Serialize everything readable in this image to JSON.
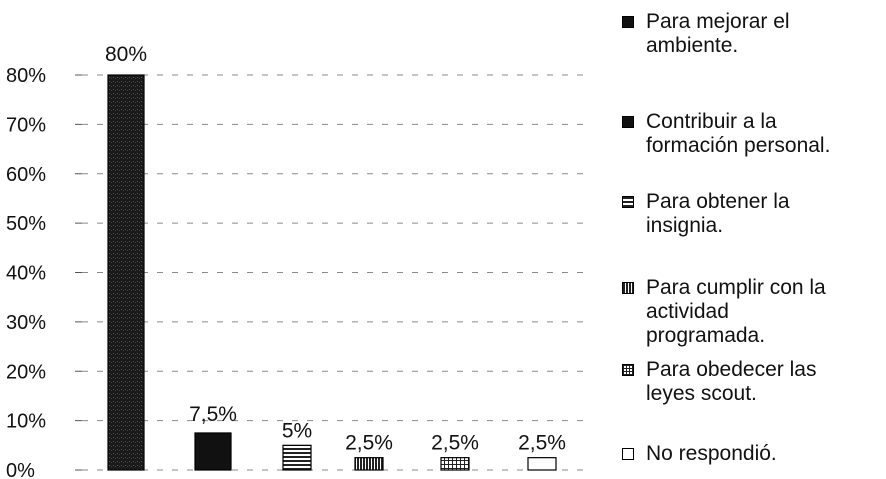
{
  "chart_data": {
    "type": "bar",
    "categories": [
      "Para mejorar el ambiente.",
      "Contribuir a la formación personal.",
      "Para obtener la insignia.",
      "Para cumplir con la actividad programada.",
      "Para obedecer las leyes scout.",
      "No respondió."
    ],
    "values": [
      80,
      7.5,
      5,
      2.5,
      2.5,
      2.5
    ],
    "data_labels": [
      "80%",
      "7,5%",
      "5%",
      "2,5%",
      "2,5%",
      "2,5%"
    ],
    "y_ticks": [
      "0%",
      "10%",
      "20%",
      "30%",
      "40%",
      "50%",
      "60%",
      "70%",
      "80%"
    ],
    "ylim": [
      0,
      80
    ],
    "grid": true,
    "legend_placement": "right",
    "colors": [
      "#1c1c1c",
      "#111111",
      "#5a5a5a",
      "#6e6e6e",
      "#7a7a7a",
      "#ffffff"
    ],
    "patterns": [
      "dark-stipple",
      "solid-dark",
      "horizontal-lines",
      "vertical-lines",
      "grid",
      "empty"
    ]
  },
  "legend": {
    "items": [
      {
        "line1": "Para mejorar el",
        "line2": "ambiente."
      },
      {
        "line1": "Contribuir a la",
        "line2": "formación personal."
      },
      {
        "line1": "Para obtener la",
        "line2": "insignia."
      },
      {
        "line1": "Para cumplir con la",
        "line2": "actividad",
        "line3": "programada."
      },
      {
        "line1": "Para obedecer las",
        "line2": "leyes scout."
      },
      {
        "line1": "No respondió.",
        "line2": ""
      }
    ]
  }
}
